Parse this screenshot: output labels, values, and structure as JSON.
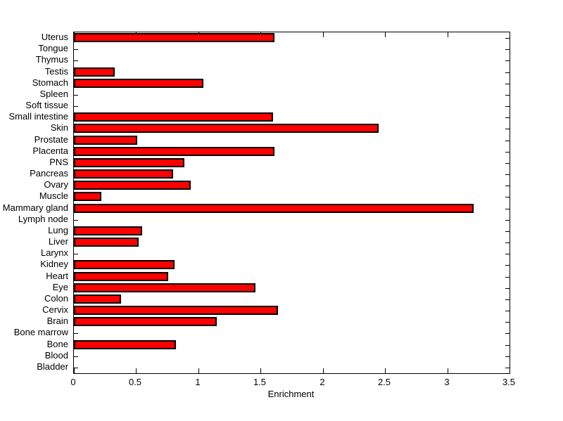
{
  "chart_data": {
    "type": "bar",
    "orientation": "horizontal",
    "title": "",
    "xlabel": "Enrichment",
    "ylabel": "",
    "xlim": [
      0,
      3.5
    ],
    "xticks": [
      0,
      0.5,
      1,
      1.5,
      2,
      2.5,
      3,
      3.5
    ],
    "xtick_labels": [
      "0",
      "0.5",
      "1",
      "1.5",
      "2",
      "2.5",
      "3",
      "3.5"
    ],
    "grid": false,
    "legend": "none",
    "bar_color": "#ff0000",
    "bar_edge_color": "#000000",
    "axis_color": "#000000",
    "background_color": "#ffffff",
    "categories": [
      "Uterus",
      "Tongue",
      "Thymus",
      "Testis",
      "Stomach",
      "Spleen",
      "Soft tissue",
      "Small intestine",
      "Skin",
      "Prostate",
      "Placenta",
      "PNS",
      "Pancreas",
      "Ovary",
      "Muscle",
      "Mammary gland",
      "Lymph node",
      "Lung",
      "Liver",
      "Larynx",
      "Kidney",
      "Heart",
      "Eye",
      "Colon",
      "Cervix",
      "Brain",
      "Bone marrow",
      "Bone",
      "Blood",
      "Bladder"
    ],
    "values": [
      1.61,
      0,
      0,
      0.33,
      1.04,
      0,
      0,
      1.6,
      2.45,
      0.51,
      1.61,
      0.89,
      0.8,
      0.94,
      0.22,
      3.21,
      0,
      0.55,
      0.52,
      0,
      0.81,
      0.76,
      1.46,
      0.38,
      1.64,
      1.15,
      0,
      0.82,
      0,
      0
    ]
  }
}
